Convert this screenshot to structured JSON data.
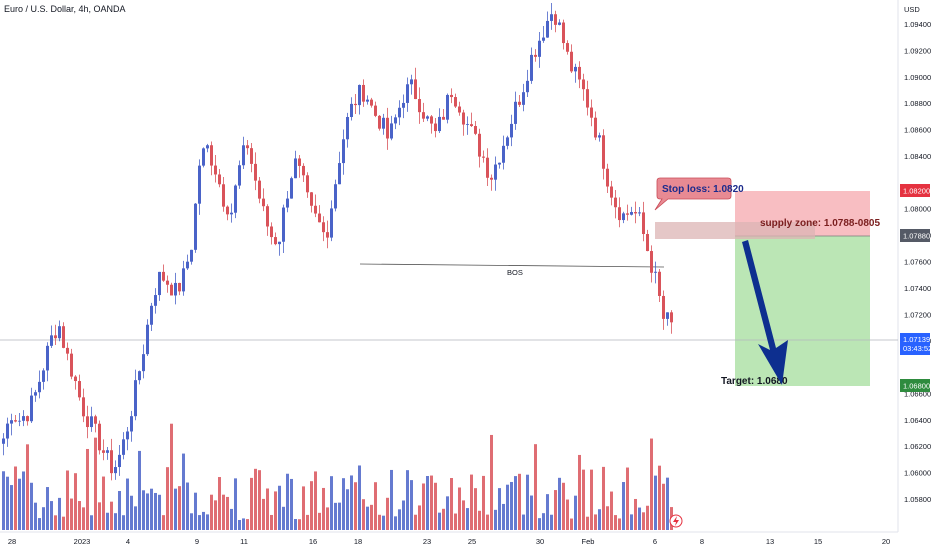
{
  "header": {
    "title": "Euro / U.S. Dollar, 4h, OANDA"
  },
  "price_axis": {
    "currency": "USD",
    "ticks": [
      "1.09400",
      "1.09200",
      "1.09000",
      "1.08800",
      "1.08600",
      "1.08400",
      "1.08000",
      "1.07800",
      "1.07600",
      "1.07400",
      "1.07200",
      "1.07000",
      "1.06600",
      "1.06400",
      "1.06200",
      "1.06000",
      "1.05800"
    ],
    "tick_values": [
      1.094,
      1.092,
      1.09,
      1.088,
      1.086,
      1.084,
      1.08,
      1.078,
      1.076,
      1.074,
      1.072,
      1.07,
      1.066,
      1.064,
      1.062,
      1.06,
      1.058
    ],
    "badges": {
      "stop": "1.08200",
      "entry": "1.07880",
      "current": "1.07139",
      "countdown": "03:43:52",
      "target": "1.06800"
    }
  },
  "time_axis": {
    "labels": [
      "28",
      "2023",
      "4",
      "9",
      "11",
      "16",
      "18",
      "23",
      "25",
      "30",
      "Feb",
      "6",
      "8",
      "13",
      "15",
      "20"
    ]
  },
  "annotations": {
    "stop_loss": "Stop loss: 1.0820",
    "supply_zone": "supply zone: 1.0788-0805",
    "bos": "BOS",
    "target": "Target: 1.0680"
  },
  "colors": {
    "up": "#4a63c8",
    "down": "#d9535a",
    "stop_zone": "#f7b3b7",
    "target_zone": "#b4e3ad",
    "supply_zone": "#dcb4b4",
    "arrow": "#0d2f8f",
    "current_badge": "#2962ff",
    "stop_badge": "#e53240",
    "target_badge": "#2e8b3e",
    "entry_badge": "#555a66"
  },
  "chart_data": {
    "type": "candlestick",
    "symbol": "EURUSD",
    "timeframe": "4h",
    "ylim": [
      1.057,
      1.096
    ],
    "levels": {
      "stop_loss": 1.082,
      "entry": 1.0788,
      "supply_zone": [
        1.0788,
        1.0805
      ],
      "target": 1.068,
      "current": 1.07139,
      "bos": 1.0768
    },
    "trend_closes": [
      1.0626,
      1.0646,
      1.064,
      1.0645,
      1.0658,
      1.0679,
      1.07,
      1.0714,
      1.069,
      1.0672,
      1.065,
      1.0638,
      1.0626,
      1.0612,
      1.0602,
      1.0616,
      1.064,
      1.0668,
      1.07,
      1.0735,
      1.075,
      1.0744,
      1.0736,
      1.075,
      1.0775,
      1.0838,
      1.0846,
      1.083,
      1.0808,
      1.0798,
      1.083,
      1.085,
      1.0823,
      1.0798,
      1.078,
      1.0775,
      1.081,
      1.0836,
      1.0822,
      1.0798,
      1.079,
      1.0778,
      1.0812,
      1.0848,
      1.0872,
      1.0885,
      1.089,
      1.0874,
      1.0866,
      1.0852,
      1.087,
      1.0888,
      1.0892,
      1.088,
      1.0866,
      1.0856,
      1.0872,
      1.089,
      1.088,
      1.0864,
      1.0852,
      1.084,
      1.0824,
      1.084,
      1.0856,
      1.0874,
      1.089,
      1.0912,
      1.0926,
      1.094,
      1.0952,
      1.0932,
      1.091,
      1.0898,
      1.0886,
      1.0868,
      1.0846,
      1.082,
      1.0802,
      1.0794,
      1.08,
      1.079,
      1.0768,
      1.0745,
      1.0716,
      1.07139
    ],
    "volume_range": [
      0,
      100
    ]
  }
}
